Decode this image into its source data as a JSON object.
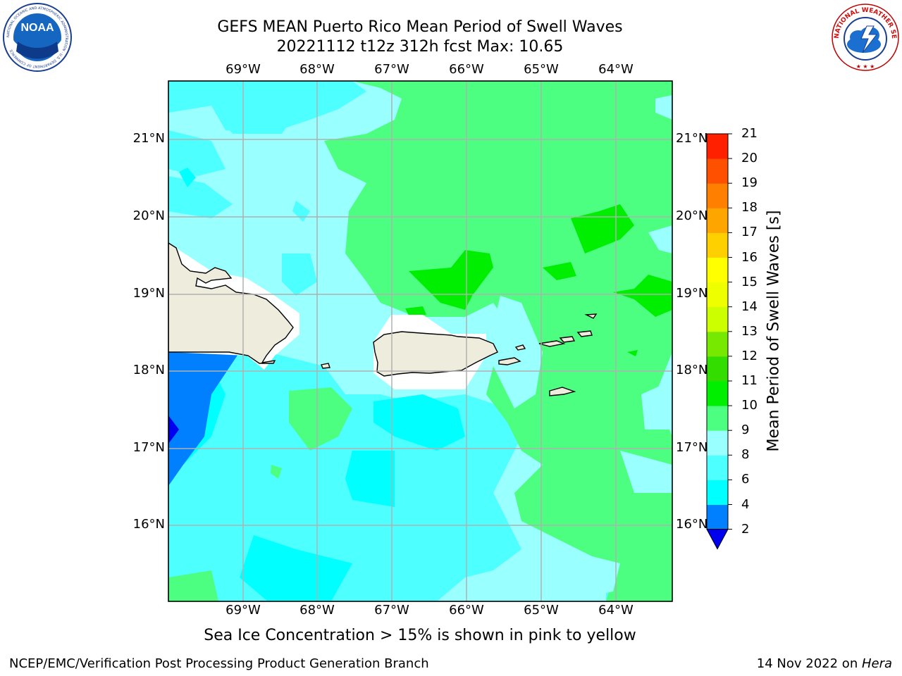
{
  "title": {
    "line1": "GEFS MEAN Puerto Rico Mean Period of Swell Waves",
    "line2": "20221112 t12z 312h fcst   Max: 10.65"
  },
  "logos": {
    "noaa_text": "NOAA",
    "noaa_ring": "NATIONAL OCEANIC AND ATMOSPHERIC ADMINISTRATION · U.S. DEPARTMENT OF COMMERCE",
    "nws_ring": "NATIONAL WEATHER SERVICE"
  },
  "map": {
    "lon_labels": [
      "69°W",
      "68°W",
      "67°W",
      "66°W",
      "65°W",
      "64°W"
    ],
    "lat_labels": [
      "21°N",
      "20°N",
      "19°N",
      "18°N",
      "17°N",
      "16°N"
    ],
    "colors": {
      "land": "#eeecdc",
      "ice_mask": "#ffffff",
      "grid": "#b0b0b0"
    }
  },
  "colorbar": {
    "title": "Mean Period of Swell Waves [s]",
    "levels": [
      "2",
      "4",
      "6",
      "8",
      "9",
      "10",
      "11",
      "12",
      "13",
      "14",
      "15",
      "16",
      "17",
      "18",
      "19",
      "20",
      "21"
    ],
    "colors": [
      "#0080ff",
      "#00ffff",
      "#4dffff",
      "#99ffff",
      "#4dff80",
      "#00ee00",
      "#33dd00",
      "#77e800",
      "#ccff00",
      "#eeff00",
      "#ffff00",
      "#ffd000",
      "#ffa500",
      "#ff8000",
      "#ff5000",
      "#ff2000",
      "#ff0000"
    ],
    "below_color": "#0000ee"
  },
  "note": "Sea Ice Concentration > 15% is shown in pink to yellow",
  "footer": {
    "left": "NCEP/EMC/Verification Post Processing Product Generation Branch",
    "right_date": "14 Nov 2022 on ",
    "right_host": "Hera"
  }
}
